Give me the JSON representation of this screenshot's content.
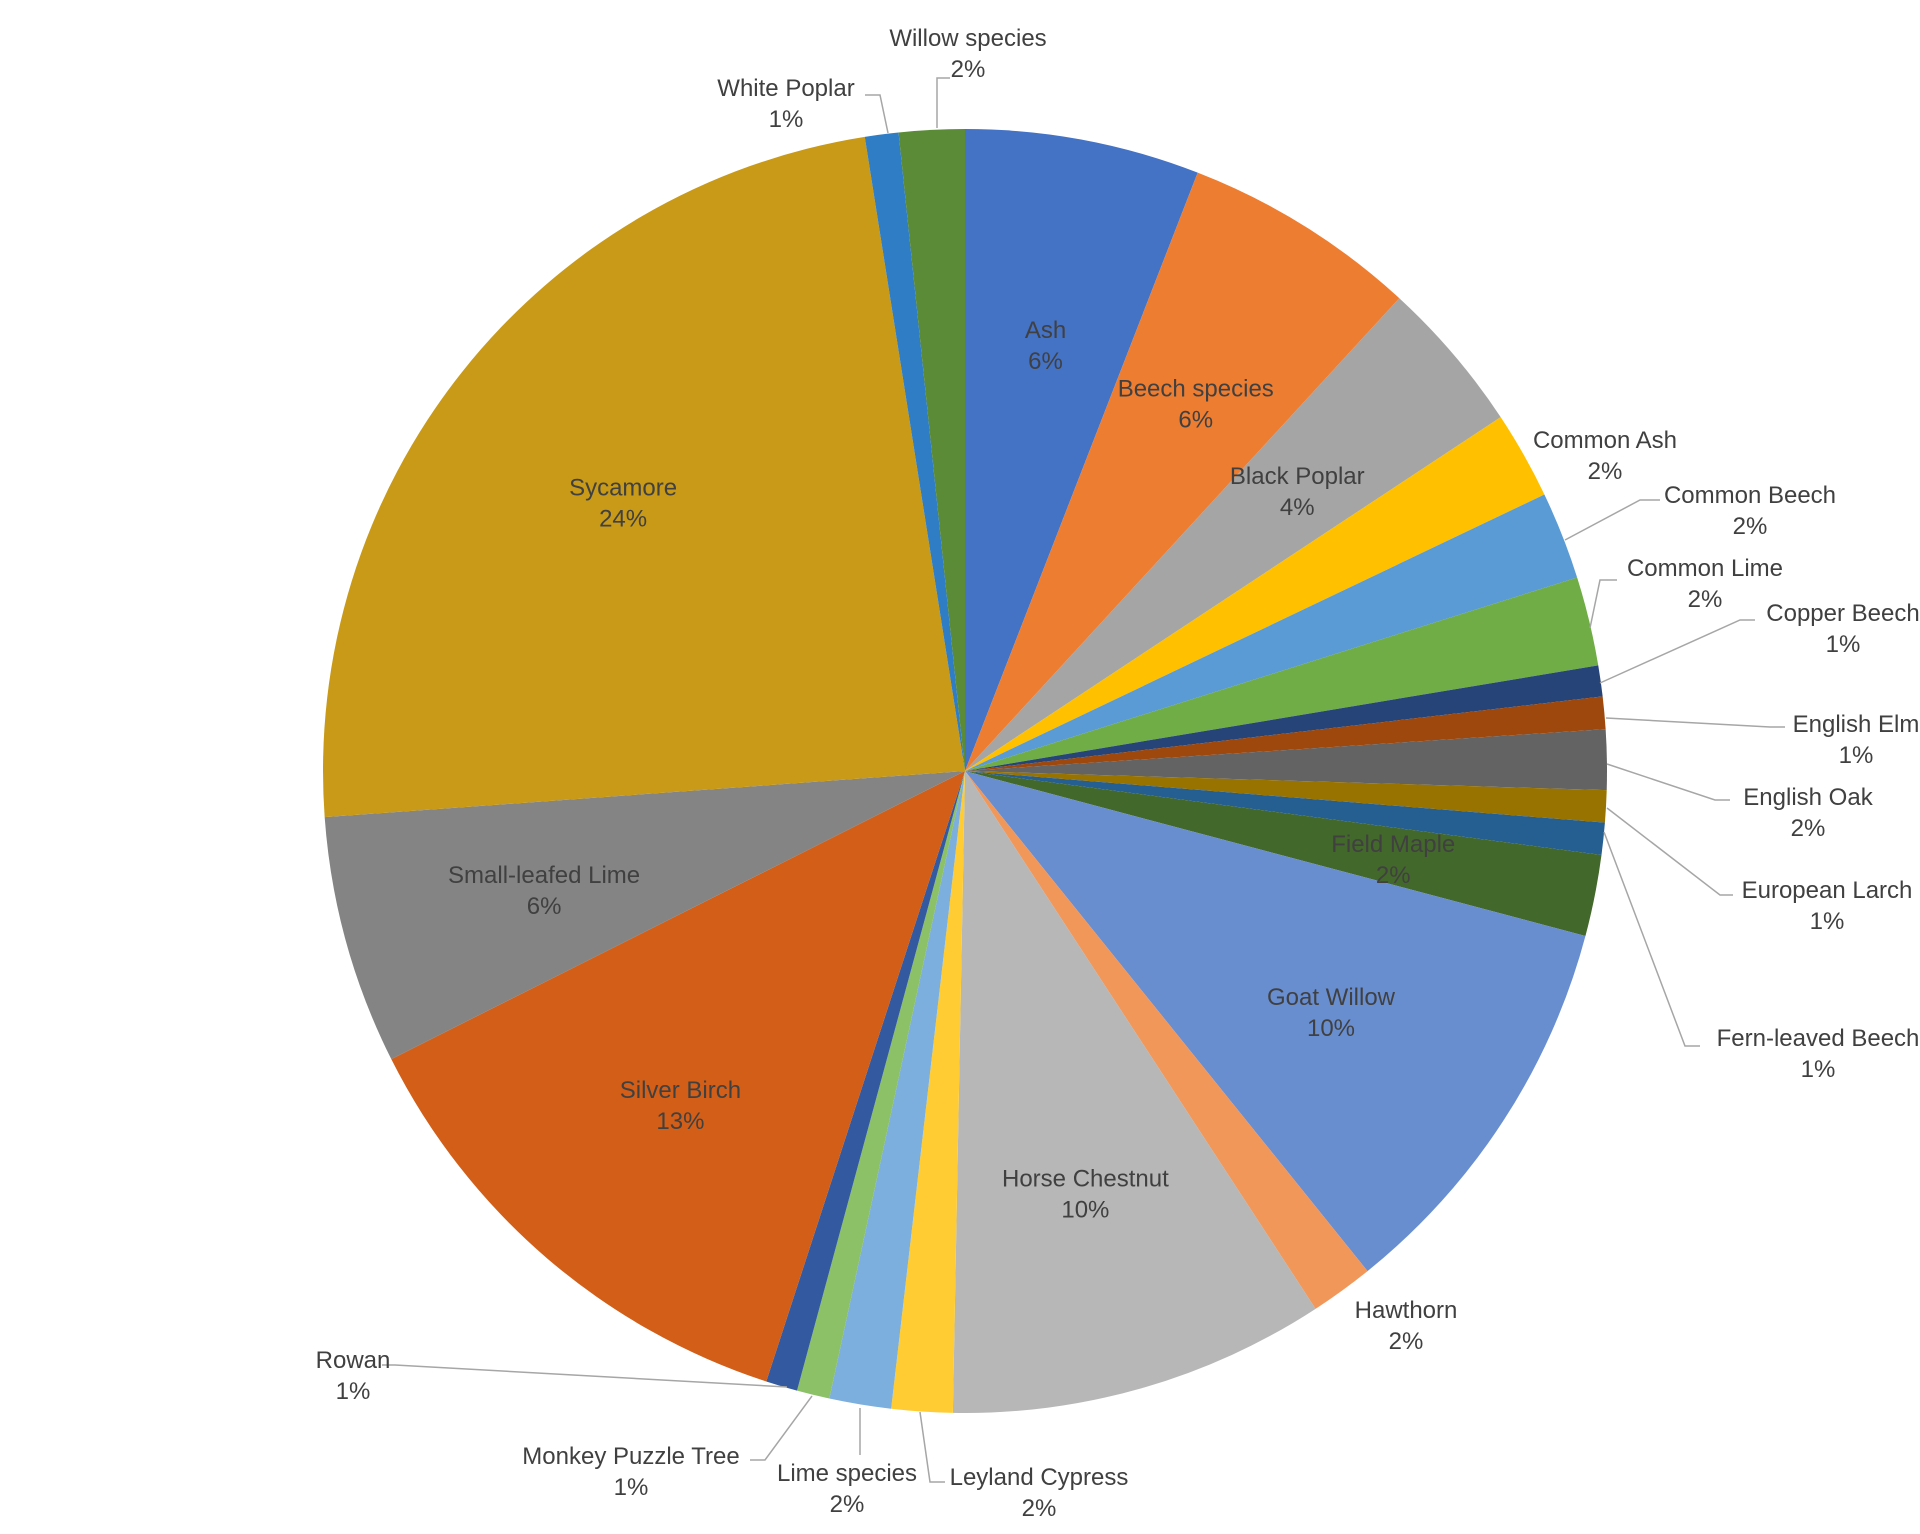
{
  "chart_data": {
    "type": "pie",
    "start_angle_deg": 0,
    "direction": "clockwise",
    "slices": [
      {
        "label": "Ash",
        "pct_label": "6%",
        "value": 6.08,
        "color": "#4472C4",
        "placement": "inside"
      },
      {
        "label": "Beech species",
        "pct_label": "6%",
        "value": 6.1,
        "color": "#ED7D31",
        "placement": "inside"
      },
      {
        "label": "Black Poplar",
        "pct_label": "4%",
        "value": 4.0,
        "color": "#A5A5A5",
        "placement": "inside"
      },
      {
        "label": "Common Ash",
        "pct_label": "2%",
        "value": 2.27,
        "color": "#FFC000",
        "placement": "outside"
      },
      {
        "label": "Common Beech",
        "pct_label": "2%",
        "value": 2.28,
        "color": "#5B9BD5",
        "placement": "outside"
      },
      {
        "label": "Common Lime",
        "pct_label": "2%",
        "value": 2.31,
        "color": "#70AD47",
        "placement": "outside"
      },
      {
        "label": "Copper Beech",
        "pct_label": "1%",
        "value": 0.8,
        "color": "#264478",
        "placement": "outside"
      },
      {
        "label": "English Elm",
        "pct_label": "1%",
        "value": 0.84,
        "color": "#9E480E",
        "placement": "outside"
      },
      {
        "label": "English Oak",
        "pct_label": "2%",
        "value": 1.56,
        "color": "#636363",
        "placement": "outside"
      },
      {
        "label": "European Larch",
        "pct_label": "1%",
        "value": 0.83,
        "color": "#997300",
        "placement": "outside"
      },
      {
        "label": "Fern-leaved Beech",
        "pct_label": "1%",
        "value": 0.83,
        "color": "#255E91",
        "placement": "outside"
      },
      {
        "label": "Field Maple",
        "pct_label": "2%",
        "value": 2.11,
        "color": "#43682B",
        "placement": "inside"
      },
      {
        "label": "Goat Willow",
        "pct_label": "10%",
        "value": 10.38,
        "color": "#698ED0",
        "placement": "inside"
      },
      {
        "label": "Hawthorn",
        "pct_label": "2%",
        "value": 1.64,
        "color": "#F1975A",
        "placement": "outside"
      },
      {
        "label": "Horse Chestnut",
        "pct_label": "10%",
        "value": 9.78,
        "color": "#B7B7B7",
        "placement": "inside"
      },
      {
        "label": "Leyland Cypress",
        "pct_label": "2%",
        "value": 1.58,
        "color": "#FFCD33",
        "placement": "outside"
      },
      {
        "label": "Lime species",
        "pct_label": "2%",
        "value": 1.6,
        "color": "#7CAFDD",
        "placement": "outside"
      },
      {
        "label": "Monkey Puzzle Tree",
        "pct_label": "1%",
        "value": 0.85,
        "color": "#8CC168",
        "placement": "outside"
      },
      {
        "label": "Rowan",
        "pct_label": "1%",
        "value": 0.82,
        "color": "#335AA1",
        "placement": "outside"
      },
      {
        "label": "Silver Birch",
        "pct_label": "13%",
        "value": 12.96,
        "color": "#D25E18",
        "placement": "inside"
      },
      {
        "label": "Small-leafed Lime",
        "pct_label": "6%",
        "value": 6.45,
        "color": "#848484",
        "placement": "inside"
      },
      {
        "label": "Sycamore",
        "pct_label": "24%",
        "value": 24.36,
        "color": "#C89A17",
        "placement": "inside"
      },
      {
        "label": "White Poplar",
        "pct_label": "1%",
        "value": 0.87,
        "color": "#2E7DC5",
        "placement": "outside"
      },
      {
        "label": "Willow species",
        "pct_label": "2%",
        "value": 1.7,
        "color": "#5B8B37",
        "placement": "outside"
      }
    ]
  }
}
